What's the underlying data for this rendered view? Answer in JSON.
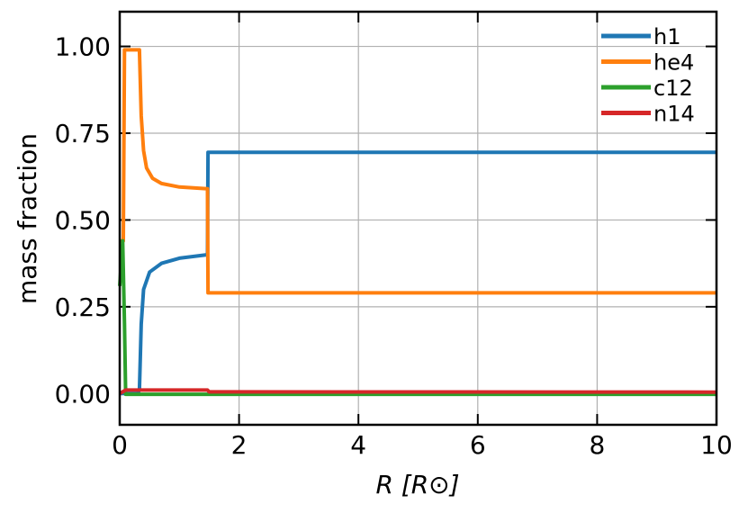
{
  "chart_data": {
    "type": "line",
    "xlabel": "R [R⊙]",
    "ylabel": "mass fraction",
    "xlim": [
      0,
      10
    ],
    "ylim": [
      -0.09,
      1.1
    ],
    "xticks": [
      0,
      2,
      4,
      6,
      8,
      10
    ],
    "yticks": [
      {
        "value": 0,
        "label": "0.00"
      },
      0.25,
      {
        "value": 0.5,
        "label": "0.50"
      },
      0.75,
      {
        "value": 1,
        "label": "1.00"
      }
    ],
    "grid": true,
    "legend": "upper right",
    "series": [
      {
        "name": "h1",
        "color": "#1f77b4",
        "x": [
          0,
          0.3,
          0.33,
          0.36,
          0.4,
          0.5,
          0.7,
          1.0,
          1.47,
          1.48,
          10
        ],
        "values": [
          0,
          0,
          0.01,
          0.2,
          0.3,
          0.35,
          0.375,
          0.39,
          0.4,
          0.695,
          0.695
        ]
      },
      {
        "name": "he4",
        "color": "#ff7f0e",
        "x": [
          0,
          0.06,
          0.08,
          0.33,
          0.36,
          0.4,
          0.45,
          0.55,
          0.7,
          1.0,
          1.47,
          1.48,
          10
        ],
        "values": [
          0.44,
          0.44,
          0.99,
          0.99,
          0.8,
          0.7,
          0.65,
          0.62,
          0.605,
          0.595,
          0.59,
          0.29,
          0.29
        ]
      },
      {
        "name": "c12",
        "color": "#2ca02c",
        "x": [
          0,
          0.05,
          0.08,
          0.1,
          10
        ],
        "values": [
          0.31,
          0.44,
          0.2,
          -0.002,
          -0.002
        ]
      },
      {
        "name": "n14",
        "color": "#d62728",
        "x": [
          0,
          0.1,
          1.47,
          1.5,
          10
        ],
        "values": [
          0,
          0.01,
          0.01,
          0.005,
          0.004
        ]
      }
    ]
  }
}
